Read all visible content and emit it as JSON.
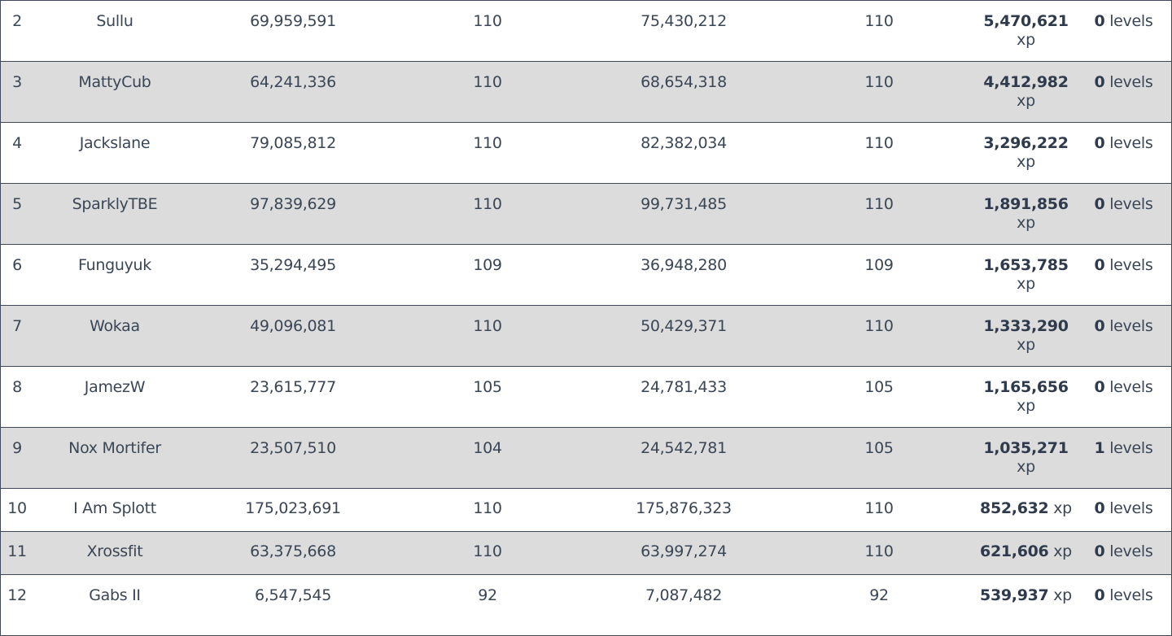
{
  "rows": [
    {
      "rank": "2",
      "name": "Sullu",
      "xp_start": "69,959,591",
      "level_start": "110",
      "xp_end": "75,430,212",
      "level_end": "110",
      "xp_gain": "5,470,621",
      "xp_unit": "xp",
      "level_gain": "0",
      "level_unit": "levels"
    },
    {
      "rank": "3",
      "name": "MattyCub",
      "xp_start": "64,241,336",
      "level_start": "110",
      "xp_end": "68,654,318",
      "level_end": "110",
      "xp_gain": "4,412,982",
      "xp_unit": "xp",
      "level_gain": "0",
      "level_unit": "levels"
    },
    {
      "rank": "4",
      "name": "Jackslane",
      "xp_start": "79,085,812",
      "level_start": "110",
      "xp_end": "82,382,034",
      "level_end": "110",
      "xp_gain": "3,296,222",
      "xp_unit": "xp",
      "level_gain": "0",
      "level_unit": "levels"
    },
    {
      "rank": "5",
      "name": "SparklyTBE",
      "xp_start": "97,839,629",
      "level_start": "110",
      "xp_end": "99,731,485",
      "level_end": "110",
      "xp_gain": "1,891,856",
      "xp_unit": "xp",
      "level_gain": "0",
      "level_unit": "levels"
    },
    {
      "rank": "6",
      "name": "Funguyuk",
      "xp_start": "35,294,495",
      "level_start": "109",
      "xp_end": "36,948,280",
      "level_end": "109",
      "xp_gain": "1,653,785",
      "xp_unit": "xp",
      "level_gain": "0",
      "level_unit": "levels"
    },
    {
      "rank": "7",
      "name": "Wokaa",
      "xp_start": "49,096,081",
      "level_start": "110",
      "xp_end": "50,429,371",
      "level_end": "110",
      "xp_gain": "1,333,290",
      "xp_unit": "xp",
      "level_gain": "0",
      "level_unit": "levels"
    },
    {
      "rank": "8",
      "name": "JamezW",
      "xp_start": "23,615,777",
      "level_start": "105",
      "xp_end": "24,781,433",
      "level_end": "105",
      "xp_gain": "1,165,656",
      "xp_unit": "xp",
      "level_gain": "0",
      "level_unit": "levels"
    },
    {
      "rank": "9",
      "name": "Nox Mortifer",
      "xp_start": "23,507,510",
      "level_start": "104",
      "xp_end": "24,542,781",
      "level_end": "105",
      "xp_gain": "1,035,271",
      "xp_unit": "xp",
      "level_gain": "1",
      "level_unit": "levels"
    },
    {
      "rank": "10",
      "name": "I Am Splott",
      "xp_start": "175,023,691",
      "level_start": "110",
      "xp_end": "175,876,323",
      "level_end": "110",
      "xp_gain": "852,632",
      "xp_unit": "xp",
      "level_gain": "0",
      "level_unit": "levels"
    },
    {
      "rank": "11",
      "name": "Xrossfit",
      "xp_start": "63,375,668",
      "level_start": "110",
      "xp_end": "63,997,274",
      "level_end": "110",
      "xp_gain": "621,606",
      "xp_unit": "xp",
      "level_gain": "0",
      "level_unit": "levels"
    },
    {
      "rank": "12",
      "name": "Gabs II",
      "xp_start": "6,547,545",
      "level_start": "92",
      "xp_end": "7,087,482",
      "level_end": "92",
      "xp_gain": "539,937",
      "xp_unit": "xp",
      "level_gain": "0",
      "level_unit": "levels"
    }
  ]
}
